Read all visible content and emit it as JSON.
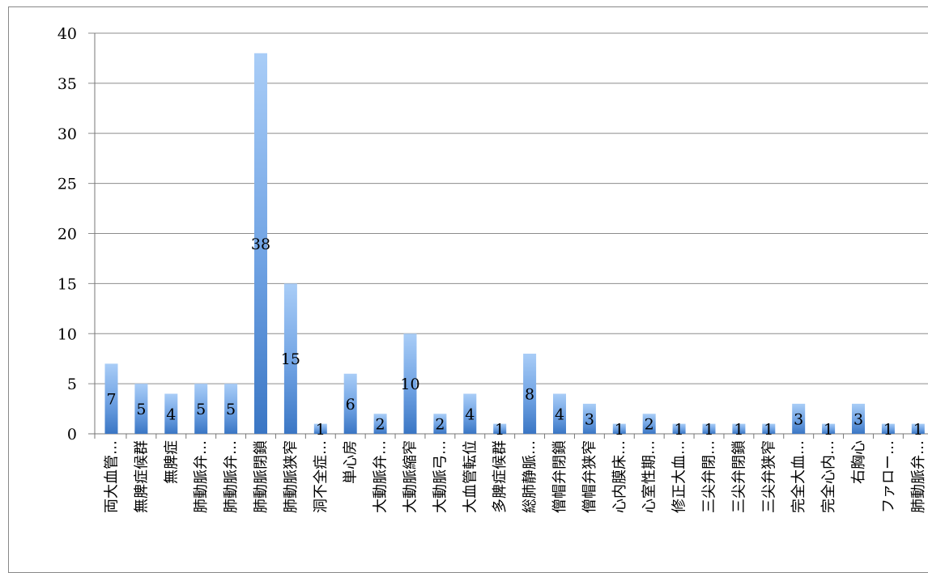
{
  "chart_data": {
    "type": "bar",
    "categories": [
      "両大血管…",
      "無脾症候群",
      "無脾症",
      "肺動脈弁…",
      "肺動脈弁…",
      "肺動脈閉鎖",
      "肺動脈狭窄",
      "洞不全症…",
      "単心房",
      "大動脈弁…",
      "大動脈縮窄",
      "大動脈弓…",
      "大血管転位",
      "多脾症候群",
      "総肺静脈…",
      "僧帽弁閉鎖",
      "僧帽弁狭窄",
      "心内膜床…",
      "心室性期…",
      "修正大血…",
      "三尖弁閉…",
      "三尖弁閉鎖",
      "三尖弁狭窄",
      "完全大血…",
      "完全心内…",
      "右胸心",
      "ファロー…",
      "肺動脈弁…"
    ],
    "values": [
      7,
      5,
      4,
      5,
      5,
      38,
      15,
      1,
      6,
      2,
      10,
      2,
      4,
      1,
      8,
      4,
      3,
      1,
      2,
      1,
      1,
      1,
      1,
      3,
      1,
      3,
      1,
      1
    ],
    "ylim": [
      0,
      40
    ],
    "yticks": [
      "0",
      "5",
      "10",
      "15",
      "20",
      "25",
      "30",
      "35",
      "40"
    ],
    "grid": true,
    "legend": "none",
    "colors": {
      "bar_top": "#a9cdf7",
      "bar_bottom": "#3a76c4",
      "grid": "#8c8c8c",
      "axis": "#777777"
    }
  }
}
